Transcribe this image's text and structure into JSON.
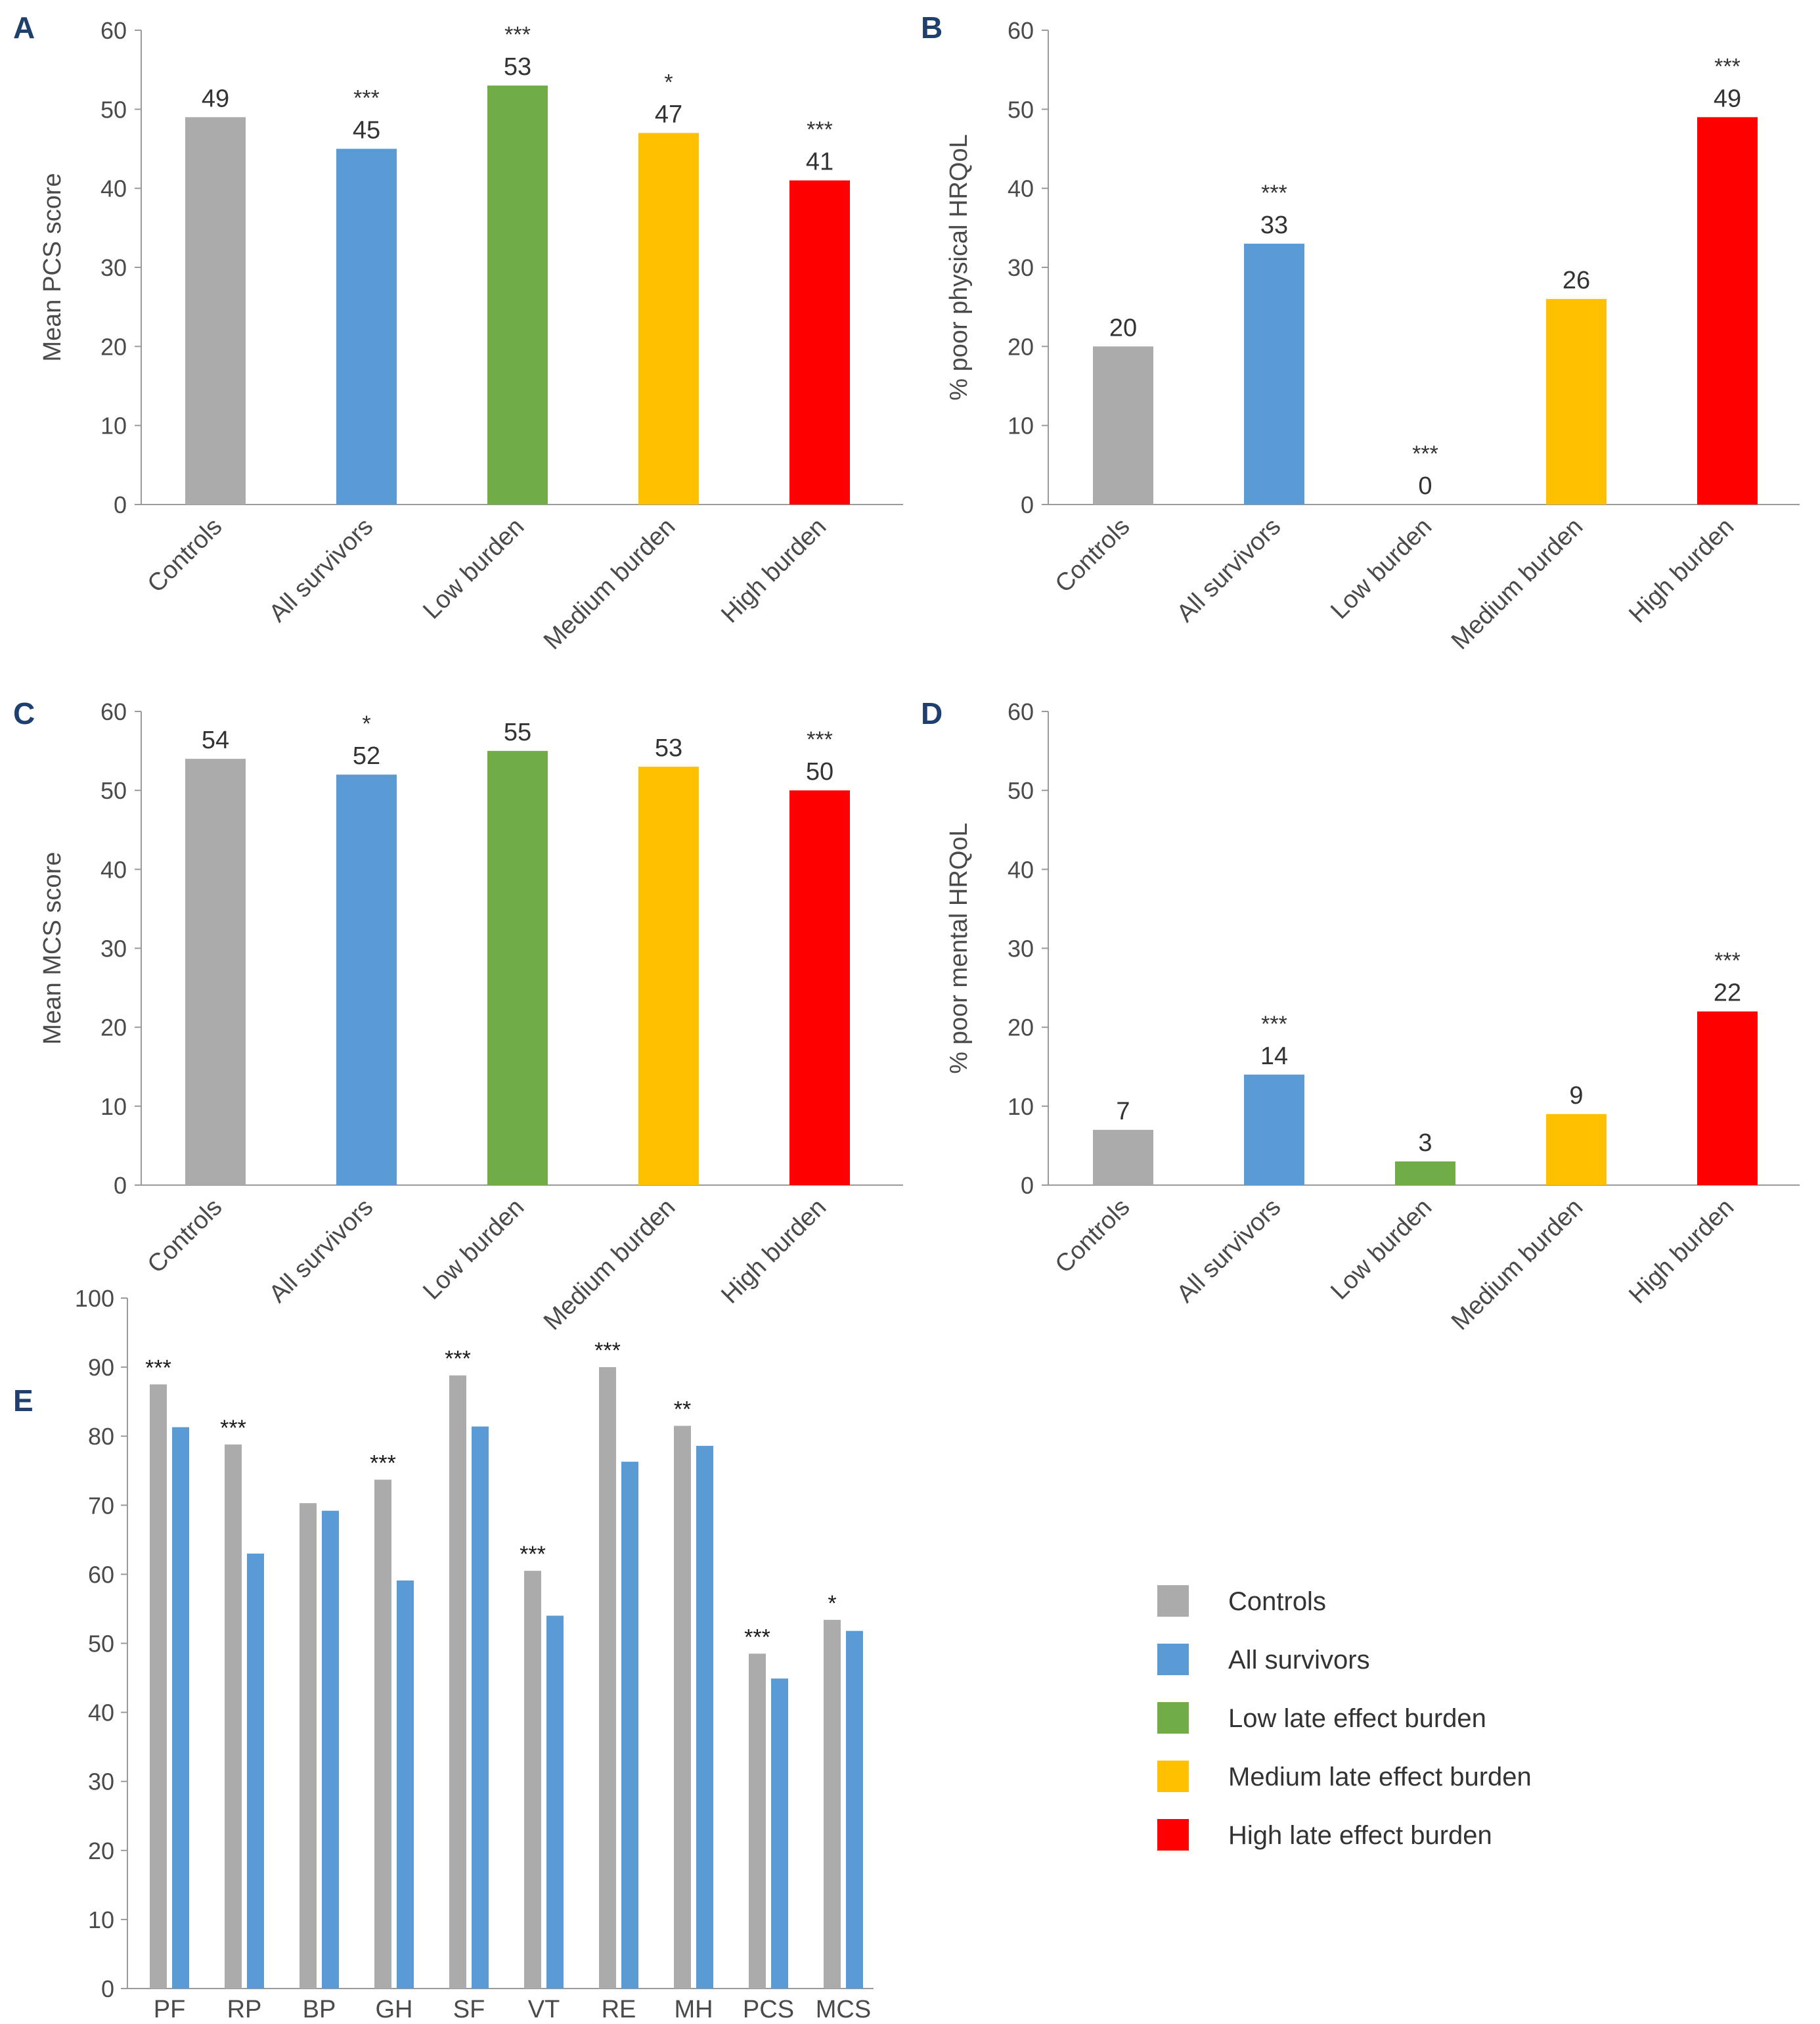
{
  "colors": {
    "controls": "#ababab",
    "all_survivors": "#5b9bd5",
    "low": "#70ad47",
    "medium": "#ffc000",
    "high": "#ff0000"
  },
  "chart_data": [
    {
      "panel": "A",
      "type": "bar",
      "ylabel": "Mean PCS score",
      "ylim": [
        0,
        60
      ],
      "yticks": [
        0,
        10,
        20,
        30,
        40,
        50,
        60
      ],
      "categories": [
        "Controls",
        "All survivors",
        "Low burden",
        "Medium burden",
        "High burden"
      ],
      "values": [
        49,
        45,
        53,
        47,
        41
      ],
      "value_labels": [
        "49",
        "45",
        "53",
        "47",
        "41"
      ],
      "significance": [
        "",
        "***",
        "***",
        "*",
        "***"
      ],
      "color_keys": [
        "controls",
        "all_survivors",
        "low",
        "medium",
        "high"
      ]
    },
    {
      "panel": "B",
      "type": "bar",
      "ylabel": "% poor physical HRQoL",
      "ylim": [
        0,
        60
      ],
      "yticks": [
        0,
        10,
        20,
        30,
        40,
        50,
        60
      ],
      "categories": [
        "Controls",
        "All survivors",
        "Low burden",
        "Medium burden",
        "High burden"
      ],
      "values": [
        20,
        33,
        0,
        26,
        49
      ],
      "value_labels": [
        "20",
        "33",
        "0",
        "26",
        "49"
      ],
      "significance": [
        "",
        "***",
        "***",
        "",
        "***"
      ],
      "color_keys": [
        "controls",
        "all_survivors",
        "low",
        "medium",
        "high"
      ]
    },
    {
      "panel": "C",
      "type": "bar",
      "ylabel": "Mean MCS score",
      "ylim": [
        0,
        60
      ],
      "yticks": [
        0,
        10,
        20,
        30,
        40,
        50,
        60
      ],
      "categories": [
        "Controls",
        "All survivors",
        "Low burden",
        "Medium burden",
        "High burden"
      ],
      "values": [
        54,
        52,
        55,
        53,
        50
      ],
      "value_labels": [
        "54",
        "52",
        "55",
        "53",
        "50"
      ],
      "significance": [
        "",
        "*",
        "",
        "",
        "***"
      ],
      "color_keys": [
        "controls",
        "all_survivors",
        "low",
        "medium",
        "high"
      ]
    },
    {
      "panel": "D",
      "type": "bar",
      "ylabel": "% poor mental HRQoL",
      "ylim": [
        0,
        60
      ],
      "yticks": [
        0,
        10,
        20,
        30,
        40,
        50,
        60
      ],
      "categories": [
        "Controls",
        "All survivors",
        "Low burden",
        "Medium burden",
        "High burden"
      ],
      "values": [
        7,
        14,
        3,
        9,
        22
      ],
      "value_labels": [
        "7",
        "14",
        "3",
        "9",
        "22"
      ],
      "significance": [
        "",
        "***",
        "",
        "",
        "***"
      ],
      "color_keys": [
        "controls",
        "all_survivors",
        "low",
        "medium",
        "high"
      ]
    },
    {
      "panel": "E",
      "type": "bar",
      "ylabel": "",
      "ylim": [
        0,
        100
      ],
      "yticks": [
        0,
        10,
        20,
        30,
        40,
        50,
        60,
        70,
        80,
        90,
        100
      ],
      "categories": [
        "PF",
        "RP",
        "BP",
        "GH",
        "SF",
        "VT",
        "RE",
        "MH",
        "PCS",
        "MCS"
      ],
      "series": [
        {
          "name": "Controls",
          "color_key": "controls",
          "values": [
            87.5,
            78.8,
            70.3,
            73.7,
            88.8,
            60.5,
            90.0,
            81.5,
            48.5,
            53.4
          ]
        },
        {
          "name": "All survivors",
          "color_key": "all_survivors",
          "values": [
            81.3,
            63.0,
            69.2,
            59.1,
            81.4,
            54.0,
            76.3,
            78.6,
            44.9,
            51.8
          ]
        }
      ],
      "significance": [
        "***",
        "***",
        "",
        "***",
        "***",
        "***",
        "***",
        "**",
        "***",
        "*"
      ]
    }
  ],
  "legend": [
    {
      "label": "Controls",
      "color_key": "controls"
    },
    {
      "label": "All survivors",
      "color_key": "all_survivors"
    },
    {
      "label": "Low late effect burden",
      "color_key": "low"
    },
    {
      "label": "Medium late effect burden",
      "color_key": "medium"
    },
    {
      "label": "High late effect burden",
      "color_key": "high"
    }
  ]
}
